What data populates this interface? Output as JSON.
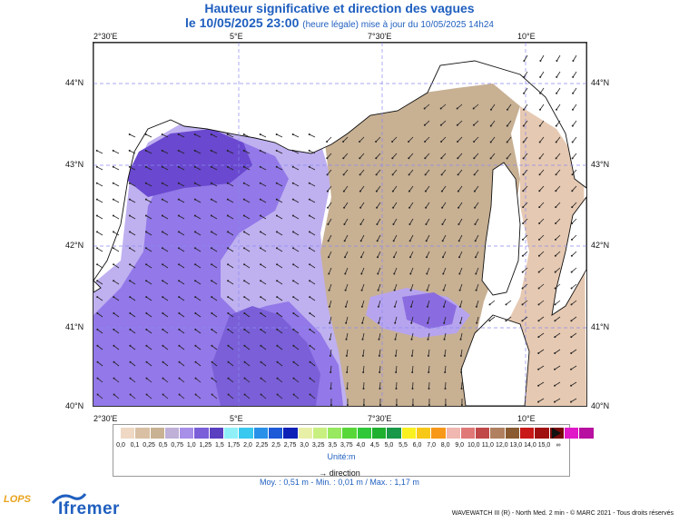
{
  "header": {
    "title": "Hauteur significative et direction des vagues",
    "subtitle_main": "le 10/05/2025 23:00",
    "subtitle_small": "(heure légale) mise à jour du 10/05/2025 14h24"
  },
  "map": {
    "lon_labels": [
      "2°30'E",
      "5°E",
      "7°30'E",
      "10°E"
    ],
    "lat_labels": [
      "44°N",
      "43°N",
      "42°N",
      "41°N",
      "40°N"
    ],
    "colors": {
      "land": "#ffffff",
      "coast": "#111111",
      "grid": "#8a8af0",
      "arrow": "#222222"
    }
  },
  "legend": {
    "unit": "Unité:m",
    "tick_labels": [
      "0,0",
      "0,1",
      "0,25",
      "0,5",
      "0,75",
      "1,0",
      "1,25",
      "1,5",
      "1,75",
      "2,0",
      "2,25",
      "2,5",
      "2,75",
      "3,0",
      "3,25",
      "3,5",
      "3,75",
      "4,0",
      "4,5",
      "5,0",
      "5,5",
      "6,0",
      "7,0",
      "8,0",
      "9,0",
      "10,0",
      "11,0",
      "12,0",
      "13,0",
      "14,0",
      "15,0",
      "∞"
    ],
    "colors": [
      "#efd8c4",
      "#d9c0a4",
      "#c9b293",
      "#bfb0d8",
      "#a88fe8",
      "#7a5fd8",
      "#5a3fc0",
      "#8ff0f8",
      "#38c8f0",
      "#2890e8",
      "#1c5ad8",
      "#0c20b8",
      "#e8f0a8",
      "#c8f080",
      "#98e860",
      "#58d838",
      "#30c838",
      "#20b030",
      "#189848",
      "#f8f020",
      "#f8c818",
      "#f89818",
      "#f0b8b0",
      "#e07878",
      "#c04848",
      "#b08060",
      "#8a5a30",
      "#c81818",
      "#a01010",
      "#780808",
      "#e018c8",
      "#b810a0"
    ]
  },
  "direction_label": "→ direction",
  "stats": "Moy. : 0,51 m   -   Min. : 0,01 m / Max. : 1,17 m",
  "footer": "WAVEWATCH III (R) - North Med. 2 min - © MARC 2021 - Tous droits réservés",
  "logos": {
    "lops": "LOPS",
    "ifremer": "Ifremer"
  }
}
